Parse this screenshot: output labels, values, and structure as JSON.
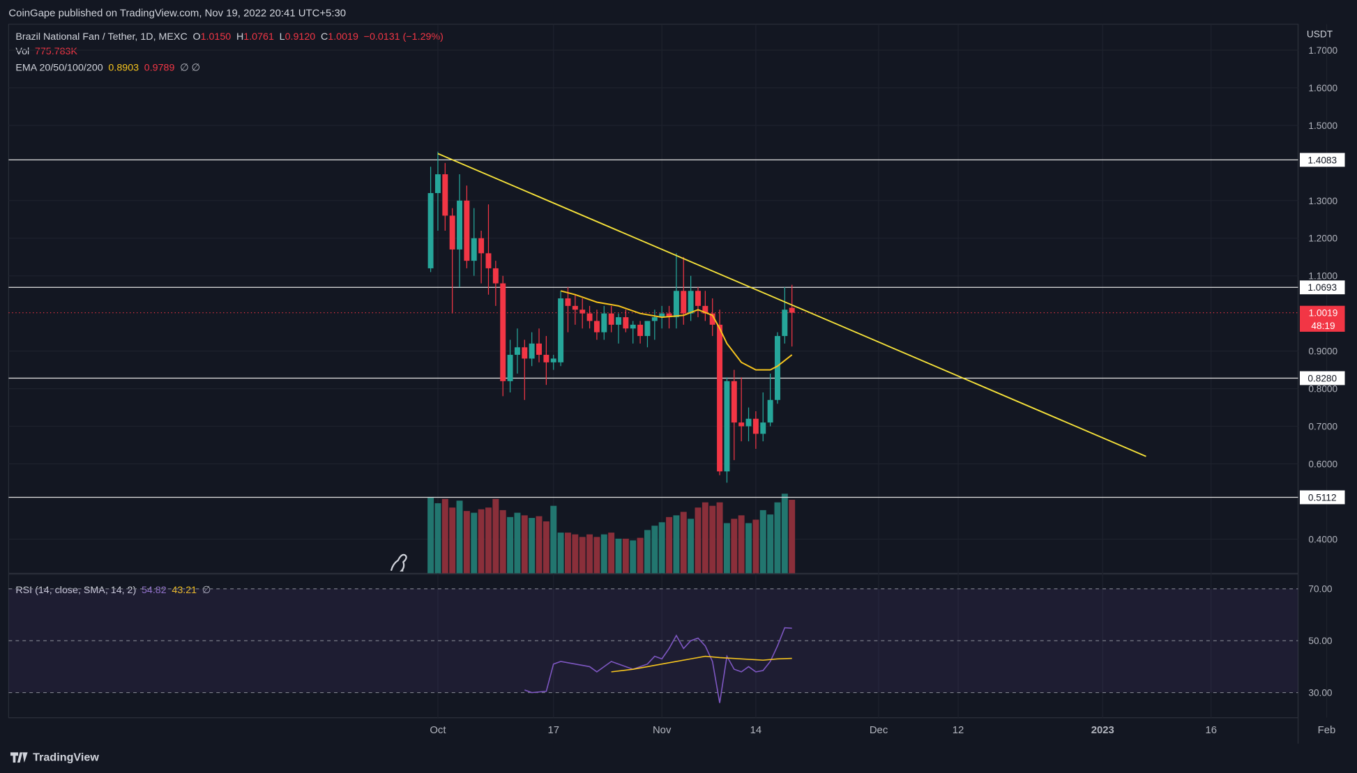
{
  "header": {
    "published": "CoinGape published on TradingView.com, Nov 19, 2022 20:41 UTC+5:30"
  },
  "legend": {
    "symbol": "Brazil National Fan / Tether, 1D, MEXC",
    "o_label": "O",
    "o_val": "1.0150",
    "h_label": "H",
    "h_val": "1.0761",
    "l_label": "L",
    "l_val": "0.9120",
    "c_label": "C",
    "c_val": "1.0019",
    "change": "−0.0131 (−1.29%)",
    "vol_label": "Vol",
    "vol_val": "775.783K",
    "ema_label": "EMA 20/50/100/200",
    "ema1": "0.8903",
    "ema2": "0.9789",
    "ema_na": "∅ ∅",
    "rsi_label": "RSI (14, close, SMA, 14, 2)",
    "rsi1": "54.82",
    "rsi2": "43.21",
    "rsi_na": "∅"
  },
  "currency": "USDT",
  "footer": {
    "brand": "TradingView"
  },
  "colors": {
    "up": "#26a69a",
    "down": "#f23645",
    "trend": "#f7e33a",
    "ema": "#f7c51e",
    "rsi": "#7e57c2",
    "bg": "#131722"
  },
  "chart_data": {
    "type": "candlestick",
    "price_axis": {
      "ticks": [
        "1.7000",
        "1.6000",
        "1.5000",
        "1.3000",
        "1.2000",
        "1.1000",
        "0.9000",
        "0.8000",
        "0.7000",
        "0.6000",
        "0.4000"
      ]
    },
    "time_axis": {
      "ticks": [
        "Oct",
        "17",
        "Nov",
        "14",
        "Dec",
        "12",
        "2023",
        "16",
        "Feb"
      ]
    },
    "levels": [
      {
        "price": 1.4083,
        "label": "1.4083"
      },
      {
        "price": 1.0693,
        "label": "1.0693"
      },
      {
        "price": 0.828,
        "label": "0.8280"
      },
      {
        "price": 0.5112,
        "label": "0.5112"
      }
    ],
    "current": {
      "price": 1.0019,
      "label": "1.0019",
      "timer": "48:19"
    },
    "trendline": {
      "from": {
        "date": "2022-10-01",
        "price": 1.425
      },
      "to": {
        "date": "2023-01-07",
        "price": 0.62
      }
    },
    "candles": [
      {
        "d": "2022-09-30",
        "o": 1.12,
        "h": 1.39,
        "l": 1.11,
        "c": 1.32
      },
      {
        "d": "2022-10-01",
        "o": 1.32,
        "h": 1.43,
        "l": 1.22,
        "c": 1.37
      },
      {
        "d": "2022-10-02",
        "o": 1.37,
        "h": 1.4,
        "l": 1.22,
        "c": 1.26
      },
      {
        "d": "2022-10-03",
        "o": 1.26,
        "h": 1.28,
        "l": 1.0,
        "c": 1.17
      },
      {
        "d": "2022-10-04",
        "o": 1.17,
        "h": 1.37,
        "l": 1.07,
        "c": 1.3
      },
      {
        "d": "2022-10-05",
        "o": 1.3,
        "h": 1.34,
        "l": 1.12,
        "c": 1.14
      },
      {
        "d": "2022-10-06",
        "o": 1.14,
        "h": 1.28,
        "l": 1.1,
        "c": 1.2
      },
      {
        "d": "2022-10-07",
        "o": 1.2,
        "h": 1.22,
        "l": 1.08,
        "c": 1.16
      },
      {
        "d": "2022-10-08",
        "o": 1.16,
        "h": 1.29,
        "l": 1.05,
        "c": 1.12
      },
      {
        "d": "2022-10-09",
        "o": 1.12,
        "h": 1.14,
        "l": 1.02,
        "c": 1.08
      },
      {
        "d": "2022-10-10",
        "o": 1.08,
        "h": 1.1,
        "l": 0.78,
        "c": 0.82
      },
      {
        "d": "2022-10-11",
        "o": 0.82,
        "h": 0.93,
        "l": 0.79,
        "c": 0.89
      },
      {
        "d": "2022-10-12",
        "o": 0.89,
        "h": 0.96,
        "l": 0.84,
        "c": 0.91
      },
      {
        "d": "2022-10-13",
        "o": 0.91,
        "h": 0.93,
        "l": 0.77,
        "c": 0.88
      },
      {
        "d": "2022-10-14",
        "o": 0.88,
        "h": 0.95,
        "l": 0.86,
        "c": 0.92
      },
      {
        "d": "2022-10-15",
        "o": 0.92,
        "h": 0.96,
        "l": 0.87,
        "c": 0.89
      },
      {
        "d": "2022-10-16",
        "o": 0.89,
        "h": 0.94,
        "l": 0.81,
        "c": 0.87
      },
      {
        "d": "2022-10-17",
        "o": 0.87,
        "h": 0.89,
        "l": 0.85,
        "c": 0.88
      },
      {
        "d": "2022-10-18",
        "o": 0.87,
        "h": 1.06,
        "l": 0.86,
        "c": 1.04
      },
      {
        "d": "2022-10-19",
        "o": 1.04,
        "h": 1.07,
        "l": 0.95,
        "c": 1.02
      },
      {
        "d": "2022-10-20",
        "o": 1.02,
        "h": 1.05,
        "l": 0.97,
        "c": 1.01
      },
      {
        "d": "2022-10-21",
        "o": 1.01,
        "h": 1.04,
        "l": 0.96,
        "c": 1.0
      },
      {
        "d": "2022-10-22",
        "o": 1.0,
        "h": 1.02,
        "l": 0.96,
        "c": 0.98
      },
      {
        "d": "2022-10-23",
        "o": 0.98,
        "h": 1.01,
        "l": 0.93,
        "c": 0.95
      },
      {
        "d": "2022-10-24",
        "o": 0.95,
        "h": 1.02,
        "l": 0.93,
        "c": 1.0
      },
      {
        "d": "2022-10-25",
        "o": 1.0,
        "h": 1.02,
        "l": 0.95,
        "c": 0.97
      },
      {
        "d": "2022-10-26",
        "o": 0.97,
        "h": 1.0,
        "l": 0.92,
        "c": 0.99
      },
      {
        "d": "2022-10-27",
        "o": 0.99,
        "h": 1.01,
        "l": 0.95,
        "c": 0.96
      },
      {
        "d": "2022-10-28",
        "o": 0.96,
        "h": 0.98,
        "l": 0.92,
        "c": 0.97
      },
      {
        "d": "2022-10-29",
        "o": 0.97,
        "h": 0.98,
        "l": 0.92,
        "c": 0.94
      },
      {
        "d": "2022-10-30",
        "o": 0.94,
        "h": 0.98,
        "l": 0.91,
        "c": 0.98
      },
      {
        "d": "2022-10-31",
        "o": 0.98,
        "h": 1.01,
        "l": 0.93,
        "c": 0.99
      },
      {
        "d": "2022-11-01",
        "o": 0.99,
        "h": 1.02,
        "l": 0.96,
        "c": 1.0
      },
      {
        "d": "2022-11-02",
        "o": 1.0,
        "h": 1.02,
        "l": 0.96,
        "c": 0.99
      },
      {
        "d": "2022-11-03",
        "o": 0.99,
        "h": 1.16,
        "l": 0.96,
        "c": 1.06
      },
      {
        "d": "2022-11-04",
        "o": 1.06,
        "h": 1.15,
        "l": 0.97,
        "c": 1.0
      },
      {
        "d": "2022-11-05",
        "o": 1.0,
        "h": 1.1,
        "l": 0.98,
        "c": 1.06
      },
      {
        "d": "2022-11-06",
        "o": 1.06,
        "h": 1.07,
        "l": 0.99,
        "c": 1.02
      },
      {
        "d": "2022-11-07",
        "o": 1.02,
        "h": 1.06,
        "l": 0.98,
        "c": 1.0
      },
      {
        "d": "2022-11-08",
        "o": 1.0,
        "h": 1.04,
        "l": 0.94,
        "c": 0.97
      },
      {
        "d": "2022-11-09",
        "o": 0.97,
        "h": 1.01,
        "l": 0.57,
        "c": 0.58
      },
      {
        "d": "2022-11-10",
        "o": 0.58,
        "h": 0.83,
        "l": 0.55,
        "c": 0.82
      },
      {
        "d": "2022-11-11",
        "o": 0.82,
        "h": 0.85,
        "l": 0.61,
        "c": 0.71
      },
      {
        "d": "2022-11-12",
        "o": 0.71,
        "h": 0.83,
        "l": 0.66,
        "c": 0.7
      },
      {
        "d": "2022-11-13",
        "o": 0.7,
        "h": 0.75,
        "l": 0.66,
        "c": 0.72
      },
      {
        "d": "2022-11-14",
        "o": 0.72,
        "h": 0.74,
        "l": 0.64,
        "c": 0.68
      },
      {
        "d": "2022-11-15",
        "o": 0.68,
        "h": 0.79,
        "l": 0.66,
        "c": 0.71
      },
      {
        "d": "2022-11-16",
        "o": 0.71,
        "h": 0.84,
        "l": 0.7,
        "c": 0.77
      },
      {
        "d": "2022-11-17",
        "o": 0.77,
        "h": 0.95,
        "l": 0.76,
        "c": 0.94
      },
      {
        "d": "2022-11-18",
        "o": 0.94,
        "h": 1.07,
        "l": 0.92,
        "c": 1.01
      },
      {
        "d": "2022-11-19",
        "o": 1.015,
        "h": 1.0761,
        "l": 0.912,
        "c": 1.0019
      }
    ],
    "volume": [
      88,
      81,
      86,
      76,
      84,
      72,
      70,
      74,
      76,
      86,
      73,
      65,
      70,
      67,
      64,
      66,
      60,
      78,
      47,
      47,
      45,
      42,
      45,
      42,
      45,
      47,
      40,
      40,
      38,
      41,
      50,
      55,
      59,
      65,
      67,
      71,
      63,
      76,
      82,
      78,
      82,
      58,
      63,
      67,
      58,
      62,
      73,
      68,
      82,
      92,
      85
    ],
    "ema20": [
      {
        "d": "2022-10-18",
        "v": 1.06
      },
      {
        "d": "2022-10-20",
        "v": 1.05
      },
      {
        "d": "2022-10-23",
        "v": 1.03
      },
      {
        "d": "2022-10-26",
        "v": 1.02
      },
      {
        "d": "2022-10-29",
        "v": 1.0
      },
      {
        "d": "2022-11-01",
        "v": 0.99
      },
      {
        "d": "2022-11-04",
        "v": 0.995
      },
      {
        "d": "2022-11-06",
        "v": 1.01
      },
      {
        "d": "2022-11-08",
        "v": 0.995
      },
      {
        "d": "2022-11-09",
        "v": 0.96
      },
      {
        "d": "2022-11-10",
        "v": 0.92
      },
      {
        "d": "2022-11-12",
        "v": 0.87
      },
      {
        "d": "2022-11-14",
        "v": 0.85
      },
      {
        "d": "2022-11-16",
        "v": 0.85
      },
      {
        "d": "2022-11-17",
        "v": 0.86
      },
      {
        "d": "2022-11-19",
        "v": 0.89
      }
    ],
    "rsi": {
      "axis_ticks": [
        "70.00",
        "50.00",
        "30.00"
      ],
      "bands": [
        70,
        50,
        30
      ],
      "rsi_values": [
        {
          "d": "2022-10-13",
          "v": 31
        },
        {
          "d": "2022-10-14",
          "v": 30
        },
        {
          "d": "2022-10-16",
          "v": 30.5
        },
        {
          "d": "2022-10-17",
          "v": 41
        },
        {
          "d": "2022-10-18",
          "v": 42
        },
        {
          "d": "2022-10-20",
          "v": 41
        },
        {
          "d": "2022-10-22",
          "v": 40
        },
        {
          "d": "2022-10-23",
          "v": 38
        },
        {
          "d": "2022-10-25",
          "v": 42
        },
        {
          "d": "2022-10-26",
          "v": 41
        },
        {
          "d": "2022-10-28",
          "v": 39
        },
        {
          "d": "2022-10-30",
          "v": 41
        },
        {
          "d": "2022-10-31",
          "v": 44
        },
        {
          "d": "2022-11-01",
          "v": 43
        },
        {
          "d": "2022-11-02",
          "v": 47
        },
        {
          "d": "2022-11-03",
          "v": 52
        },
        {
          "d": "2022-11-04",
          "v": 47
        },
        {
          "d": "2022-11-05",
          "v": 50
        },
        {
          "d": "2022-11-06",
          "v": 51
        },
        {
          "d": "2022-11-07",
          "v": 48
        },
        {
          "d": "2022-11-08",
          "v": 42
        },
        {
          "d": "2022-11-09",
          "v": 26
        },
        {
          "d": "2022-11-10",
          "v": 44
        },
        {
          "d": "2022-11-11",
          "v": 39
        },
        {
          "d": "2022-11-12",
          "v": 38
        },
        {
          "d": "2022-11-13",
          "v": 40
        },
        {
          "d": "2022-11-14",
          "v": 38
        },
        {
          "d": "2022-11-15",
          "v": 38.5
        },
        {
          "d": "2022-11-16",
          "v": 42
        },
        {
          "d": "2022-11-17",
          "v": 48
        },
        {
          "d": "2022-11-18",
          "v": 55
        },
        {
          "d": "2022-11-19",
          "v": 54.8
        }
      ],
      "sma_values": [
        {
          "d": "2022-10-25",
          "v": 38
        },
        {
          "d": "2022-10-28",
          "v": 39
        },
        {
          "d": "2022-10-31",
          "v": 40.5
        },
        {
          "d": "2022-11-02",
          "v": 41.5
        },
        {
          "d": "2022-11-05",
          "v": 43
        },
        {
          "d": "2022-11-07",
          "v": 44
        },
        {
          "d": "2022-11-09",
          "v": 43.5
        },
        {
          "d": "2022-11-12",
          "v": 43
        },
        {
          "d": "2022-11-15",
          "v": 42.5
        },
        {
          "d": "2022-11-17",
          "v": 43
        },
        {
          "d": "2022-11-19",
          "v": 43.2
        }
      ]
    }
  }
}
